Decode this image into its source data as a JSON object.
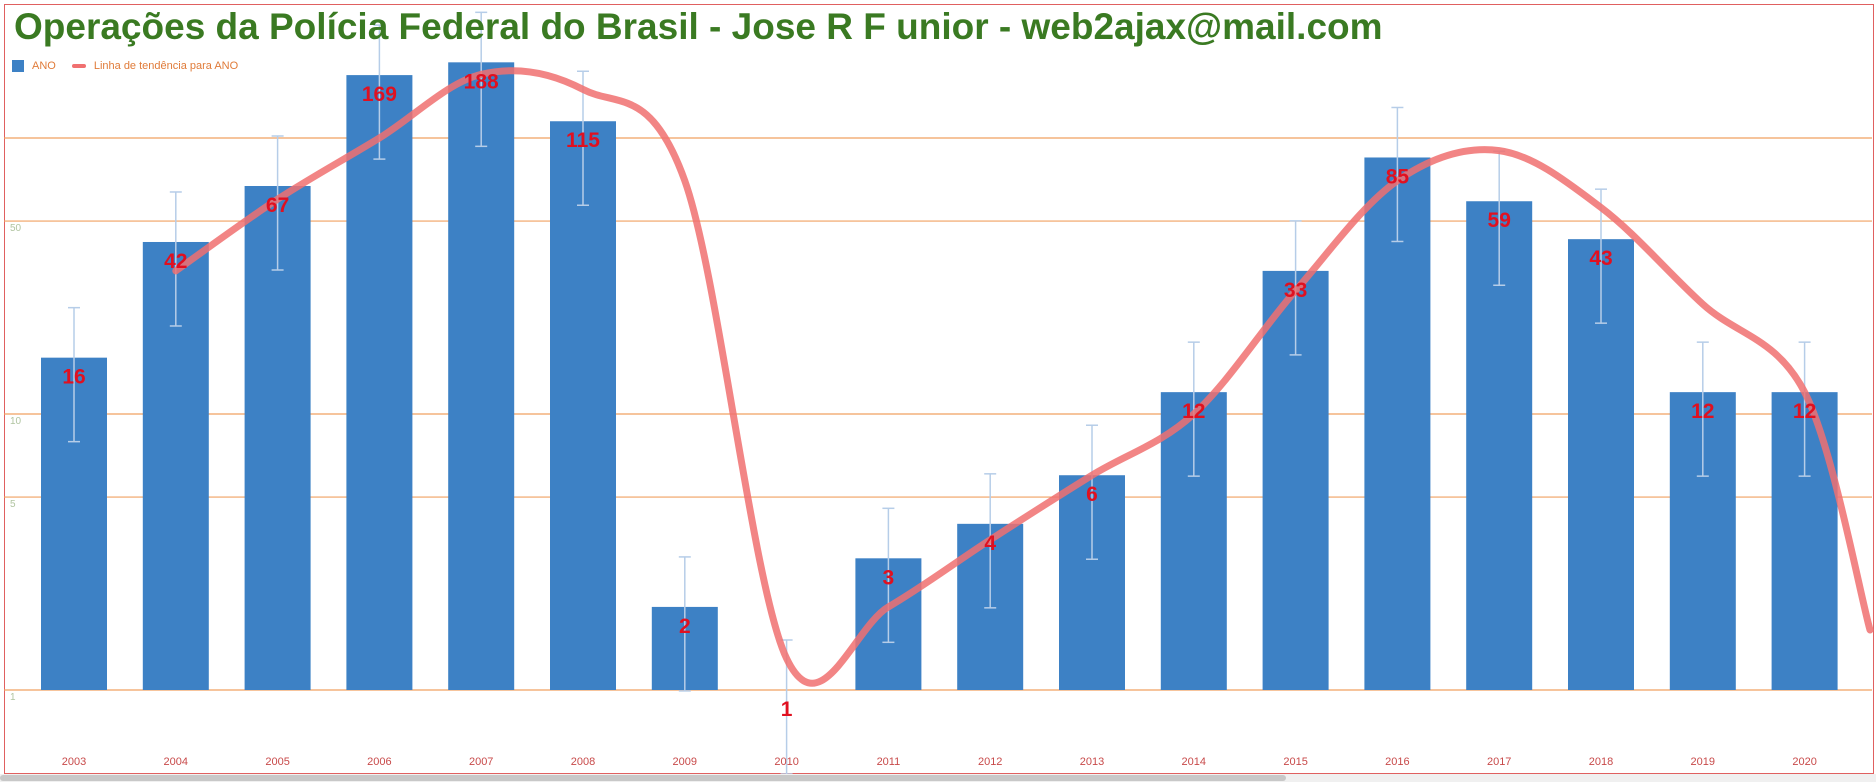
{
  "chart_data": {
    "type": "bar",
    "title": "Operações da Polícia Federal do Brasil - Jose R F unior - web2ajax@mail.com",
    "categories": [
      "2003",
      "2004",
      "2005",
      "2006",
      "2007",
      "2008",
      "2009",
      "2010",
      "2011",
      "2012",
      "2013",
      "2014",
      "2015",
      "2016",
      "2017",
      "2018",
      "2019",
      "2020"
    ],
    "series": [
      {
        "name": "ANO",
        "values": [
          16,
          42,
          67,
          169,
          188,
          115,
          2,
          1,
          3,
          4,
          6,
          12,
          33,
          85,
          59,
          43,
          12,
          12
        ]
      }
    ],
    "data_labels": [
      "16",
      "42",
      "67",
      "169",
      "188",
      "115",
      "2",
      "1",
      "3",
      "4",
      "6",
      "12",
      "33",
      "85",
      "59",
      "43",
      "12",
      "12"
    ],
    "trendline": {
      "name": "Linha de tendência para ANO",
      "x_start": "2004",
      "x_end": "2020",
      "values": [
        33,
        60,
        100,
        170,
        150,
        70,
        1.3,
        2,
        3.5,
        6,
        10,
        28,
        70,
        90,
        56,
        25,
        12
      ]
    },
    "y_axis": {
      "scale": "log",
      "ticks": [
        1,
        5,
        10,
        50
      ],
      "tick_labels": [
        "1",
        "5",
        "10",
        "50"
      ],
      "ylim": [
        1,
        190
      ]
    },
    "gridlines": [
      5,
      10,
      50,
      100
    ],
    "grid": true,
    "error_bars": true,
    "legend_position": "top-left",
    "colors": {
      "bar": "#3d81c5",
      "trendline": "#f07070",
      "data_label": "#e01020",
      "title": "#3a7a22",
      "legend_text": "#e07b39",
      "gridline": "#f0a060",
      "x_tick": "#c84a4a",
      "error_bar": "#b6cde8",
      "frame": "#e06060"
    }
  }
}
